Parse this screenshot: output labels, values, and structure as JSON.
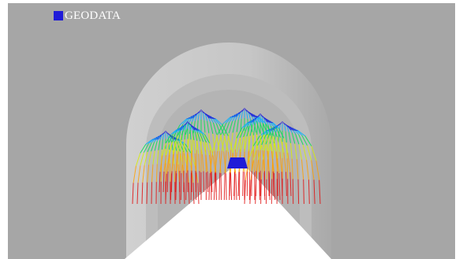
{
  "logo": {
    "text": "GEODATA",
    "mark_color": "#1f1bd8"
  },
  "scene": {
    "background_color": "#a6a6a6",
    "tunnel_wall_color": "#c9c9c9",
    "road_color": "#ffffff",
    "color_scale": [
      "#1f1bd8",
      "#00b0ff",
      "#00e050",
      "#d8ee00",
      "#ffa000",
      "#e01010"
    ]
  }
}
